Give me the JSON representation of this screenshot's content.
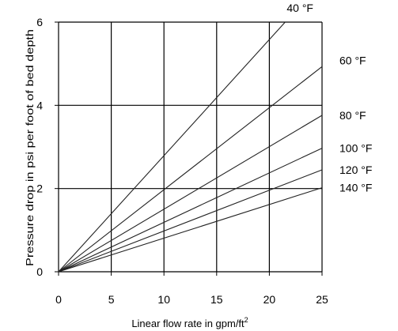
{
  "chart_data": {
    "type": "line",
    "xlabel": "Linear flow rate in gpm/ft",
    "xlabel_superscript": "2",
    "ylabel": "Pressure drop in psi per foot of bed depth",
    "xlim": [
      0,
      25
    ],
    "ylim": [
      0,
      6
    ],
    "xticks": [
      "0",
      "5",
      "10",
      "15",
      "20",
      "25"
    ],
    "yticks": [
      "0",
      "2",
      "4",
      "6"
    ],
    "grid": true,
    "series": [
      {
        "name": "40 °F",
        "x": [
          0,
          21.5
        ],
        "y": [
          0,
          6.0
        ]
      },
      {
        "name": "60 °F",
        "x": [
          0,
          25
        ],
        "y": [
          0,
          4.93
        ]
      },
      {
        "name": "80 °F",
        "x": [
          0,
          25
        ],
        "y": [
          0,
          3.76
        ]
      },
      {
        "name": "100 °F",
        "x": [
          0,
          25
        ],
        "y": [
          0,
          2.97
        ]
      },
      {
        "name": "120 °F",
        "x": [
          0,
          25
        ],
        "y": [
          0,
          2.45
        ]
      },
      {
        "name": "140 °F",
        "x": [
          0,
          25
        ],
        "y": [
          0,
          2.02
        ]
      }
    ]
  }
}
